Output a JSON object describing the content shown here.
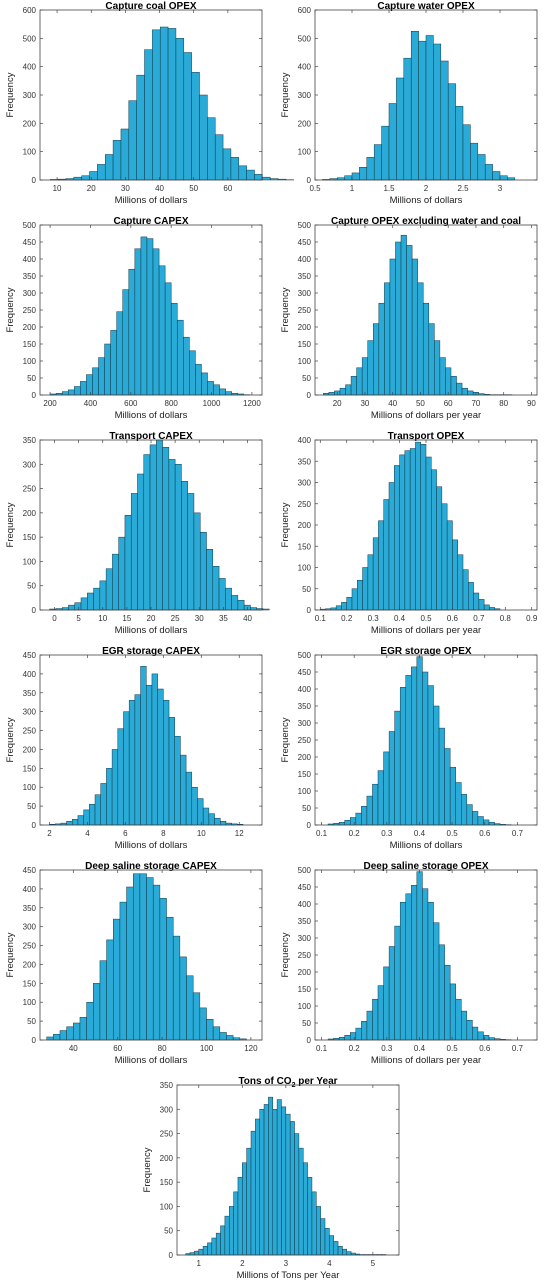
{
  "chart_data": [
    {
      "type": "bar",
      "title": "Capture coal OPEX",
      "xlabel": "Millions of dollars",
      "ylabel": "Frequency",
      "xlim": [
        5,
        70
      ],
      "ylim": [
        0,
        600
      ],
      "xticks": [
        10,
        20,
        30,
        40,
        50,
        60
      ],
      "yticks": [
        0,
        100,
        200,
        300,
        400,
        500,
        600
      ],
      "bin_start": 8,
      "bin_width": 2.3,
      "values": [
        2,
        3,
        5,
        10,
        15,
        30,
        55,
        90,
        140,
        180,
        280,
        370,
        460,
        530,
        540,
        535,
        500,
        450,
        380,
        300,
        220,
        160,
        110,
        80,
        50,
        35,
        20,
        10,
        5,
        3,
        1
      ]
    },
    {
      "type": "bar",
      "title": "Capture water OPEX",
      "xlabel": "Millions of dollars",
      "ylabel": "Frequency",
      "xlim": [
        0.5,
        3.5
      ],
      "ylim": [
        0,
        600
      ],
      "xticks": [
        0.5,
        1,
        1.5,
        2,
        2.5,
        3
      ],
      "yticks": [
        0,
        100,
        200,
        300,
        400,
        500,
        600
      ],
      "bin_start": 0.6,
      "bin_width": 0.1,
      "values": [
        2,
        5,
        8,
        15,
        25,
        45,
        80,
        125,
        190,
        270,
        360,
        430,
        525,
        490,
        510,
        480,
        420,
        340,
        260,
        195,
        130,
        90,
        55,
        30,
        15,
        8
      ]
    },
    {
      "type": "bar",
      "title": "Capture CAPEX",
      "xlabel": "Millions of dollars",
      "ylabel": "Frequency",
      "xlim": [
        150,
        1250
      ],
      "ylim": [
        0,
        500
      ],
      "xticks": [
        200,
        400,
        600,
        800,
        1000,
        1200
      ],
      "yticks": [
        0,
        50,
        100,
        150,
        200,
        250,
        300,
        350,
        400,
        450,
        500
      ],
      "bin_start": 200,
      "bin_width": 30,
      "values": [
        3,
        5,
        10,
        15,
        25,
        40,
        60,
        80,
        110,
        150,
        190,
        245,
        310,
        370,
        430,
        465,
        460,
        430,
        380,
        330,
        270,
        220,
        170,
        130,
        90,
        65,
        40,
        30,
        18,
        10,
        5,
        3,
        1
      ]
    },
    {
      "type": "bar",
      "title": "Capture OPEX excluding water and coal",
      "xlabel": "Millions of dollars per year",
      "ylabel": "Frequency",
      "xlim": [
        12,
        92
      ],
      "ylim": [
        0,
        500
      ],
      "xticks": [
        20,
        30,
        40,
        50,
        60,
        70,
        80,
        90
      ],
      "yticks": [
        0,
        50,
        100,
        150,
        200,
        250,
        300,
        350,
        400,
        450,
        500
      ],
      "bin_start": 15,
      "bin_width": 2,
      "values": [
        5,
        8,
        12,
        20,
        30,
        55,
        80,
        110,
        160,
        210,
        270,
        330,
        400,
        450,
        470,
        440,
        400,
        330,
        270,
        210,
        160,
        110,
        80,
        55,
        35,
        20,
        12,
        8,
        4,
        2,
        1,
        1,
        1,
        1
      ]
    },
    {
      "type": "bar",
      "title": "Transport CAPEX",
      "xlabel": "Millions of dollars",
      "ylabel": "Frequency",
      "xlim": [
        -3,
        43
      ],
      "ylim": [
        0,
        350
      ],
      "xticks": [
        0,
        5,
        10,
        15,
        20,
        25,
        30,
        35,
        40
      ],
      "yticks": [
        0,
        50,
        100,
        150,
        200,
        250,
        300,
        350
      ],
      "bin_start": -1,
      "bin_width": 1.3,
      "values": [
        2,
        3,
        5,
        10,
        15,
        25,
        35,
        45,
        60,
        85,
        115,
        150,
        195,
        240,
        280,
        320,
        340,
        350,
        335,
        310,
        300,
        265,
        240,
        200,
        160,
        125,
        90,
        65,
        45,
        30,
        20,
        10,
        5,
        3,
        2
      ]
    },
    {
      "type": "bar",
      "title": "Transport OPEX",
      "xlabel": "Millions of dollars per year",
      "ylabel": "Frequency",
      "xlim": [
        0.08,
        0.92
      ],
      "ylim": [
        0,
        400
      ],
      "xticks": [
        0.1,
        0.2,
        0.3,
        0.4,
        0.5,
        0.6,
        0.7,
        0.8,
        0.9
      ],
      "yticks": [
        0,
        50,
        100,
        150,
        200,
        250,
        300,
        350,
        400
      ],
      "bin_start": 0.1,
      "bin_width": 0.02,
      "values": [
        2,
        3,
        5,
        10,
        18,
        30,
        50,
        70,
        100,
        130,
        170,
        210,
        260,
        300,
        340,
        365,
        375,
        380,
        395,
        390,
        360,
        330,
        290,
        250,
        210,
        165,
        130,
        95,
        65,
        40,
        25,
        12,
        6,
        3
      ]
    },
    {
      "type": "bar",
      "title": "EGR storage CAPEX",
      "xlabel": "Millions of dollars",
      "ylabel": "Frequency",
      "xlim": [
        1.5,
        13.2
      ],
      "ylim": [
        0,
        450
      ],
      "xticks": [
        2,
        4,
        6,
        8,
        10,
        12
      ],
      "yticks": [
        0,
        50,
        100,
        150,
        200,
        250,
        300,
        350,
        400,
        450
      ],
      "bin_start": 2,
      "bin_width": 0.3,
      "values": [
        2,
        3,
        5,
        10,
        15,
        25,
        40,
        55,
        80,
        110,
        150,
        200,
        255,
        300,
        330,
        345,
        420,
        370,
        400,
        360,
        330,
        285,
        235,
        185,
        140,
        100,
        70,
        45,
        30,
        18,
        10,
        5,
        3,
        2
      ]
    },
    {
      "type": "bar",
      "title": "EGR storage OPEX",
      "xlabel": "Millions of dollars",
      "ylabel": "Frequency",
      "xlim": [
        0.08,
        0.76
      ],
      "ylim": [
        0,
        500
      ],
      "xticks": [
        0.1,
        0.2,
        0.3,
        0.4,
        0.5,
        0.6,
        0.7
      ],
      "yticks": [
        0,
        50,
        100,
        150,
        200,
        250,
        300,
        350,
        400,
        450,
        500
      ],
      "bin_start": 0.12,
      "bin_width": 0.017,
      "values": [
        3,
        5,
        8,
        14,
        22,
        35,
        55,
        85,
        120,
        160,
        215,
        275,
        335,
        405,
        440,
        465,
        495,
        450,
        410,
        350,
        285,
        225,
        170,
        125,
        90,
        60,
        40,
        25,
        15,
        8,
        4,
        2,
        1
      ]
    },
    {
      "type": "bar",
      "title": "Deep saline storage CAPEX",
      "xlabel": "Millions of dollars",
      "ylabel": "Frequency",
      "xlim": [
        25,
        125
      ],
      "ylim": [
        0,
        450
      ],
      "xticks": [
        40,
        60,
        80,
        100,
        120
      ],
      "yticks": [
        0,
        50,
        100,
        150,
        200,
        250,
        300,
        350,
        400,
        450
      ],
      "bin_start": 28,
      "bin_width": 3,
      "values": [
        8,
        15,
        25,
        35,
        45,
        60,
        100,
        150,
        210,
        265,
        320,
        365,
        405,
        440,
        440,
        430,
        410,
        375,
        325,
        275,
        220,
        170,
        125,
        85,
        55,
        35,
        20,
        12,
        6,
        3
      ]
    },
    {
      "type": "bar",
      "title": "Deep saline storage OPEX",
      "xlabel": "Millions of dollars per year",
      "ylabel": "Frequency",
      "xlim": [
        0.08,
        0.76
      ],
      "ylim": [
        0,
        500
      ],
      "xticks": [
        0.1,
        0.2,
        0.3,
        0.4,
        0.5,
        0.6,
        0.7
      ],
      "yticks": [
        0,
        50,
        100,
        150,
        200,
        250,
        300,
        350,
        400,
        450,
        500
      ],
      "bin_start": 0.12,
      "bin_width": 0.017,
      "values": [
        3,
        5,
        8,
        14,
        22,
        35,
        55,
        85,
        120,
        160,
        215,
        275,
        335,
        405,
        430,
        455,
        495,
        445,
        405,
        345,
        280,
        220,
        165,
        120,
        85,
        58,
        38,
        24,
        14,
        7,
        4,
        2,
        1
      ]
    },
    {
      "type": "bar",
      "title_main": "Tons of CO",
      "title_sub": "2",
      "title_tail": " per Year",
      "xlabel": "Millions of Tons per Year",
      "ylabel": "Frequency",
      "xlim": [
        0.5,
        5.6
      ],
      "ylim": [
        0,
        350
      ],
      "xticks": [
        1,
        2,
        3,
        4,
        5
      ],
      "yticks": [
        0,
        50,
        100,
        150,
        200,
        250,
        300,
        350
      ],
      "bin_start": 0.7,
      "bin_width": 0.1,
      "values": [
        3,
        5,
        8,
        12,
        18,
        25,
        35,
        45,
        60,
        80,
        100,
        130,
        160,
        190,
        220,
        255,
        280,
        300,
        310,
        325,
        300,
        320,
        305,
        290,
        275,
        250,
        220,
        190,
        160,
        130,
        100,
        75,
        55,
        40,
        28,
        18,
        12,
        7,
        4,
        2,
        1,
        1,
        1,
        1,
        1,
        1
      ]
    }
  ]
}
